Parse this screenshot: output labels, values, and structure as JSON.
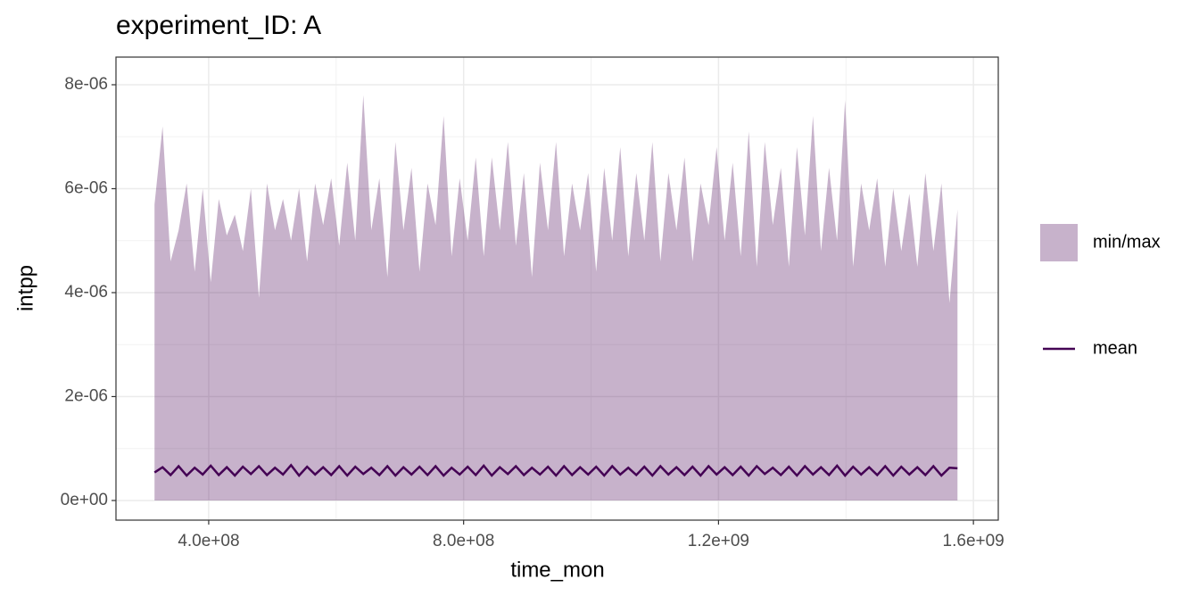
{
  "chart_data": {
    "type": "ribbon_line",
    "title": "experiment_ID: A",
    "x_label": "time_mon",
    "y_label": "intpp",
    "x": [
      315000000.0,
      327600000.0,
      340200000.0,
      352800000.0,
      365400000.0,
      378000000.0,
      390600000.0,
      403200000.0,
      415800000.0,
      428400000.0,
      441000000.0,
      453600000.0,
      466200000.0,
      478800000.0,
      491400000.0,
      504000000.0,
      516600000.0,
      529200000.0,
      541800000.0,
      554400000.0,
      567000000.0,
      579600000.0,
      592200000.0,
      604800000.0,
      617400000.0,
      630000000.0,
      642600000.0,
      655200000.0,
      667800000.0,
      680400000.0,
      693000000.0,
      705600000.0,
      718200000.0,
      730800000.0,
      743400000.0,
      756000000.0,
      768600000.0,
      781200000.0,
      793800000.0,
      806400000.0,
      819000000.0,
      831600000.0,
      844200000.0,
      856800000.0,
      869400000.0,
      882000000.0,
      894600000.0,
      907200000.0,
      919800000.0,
      932400000.0,
      945000000.0,
      957600000.0,
      970200000.0,
      982800000.0,
      995400000.0,
      1008000000.0,
      1020600000.0,
      1033200000.0,
      1045800000.0,
      1058400000.0,
      1071000000.0,
      1083600000.0,
      1096200000.0,
      1108800000.0,
      1121400000.0,
      1134000000.0,
      1146600000.0,
      1159200000.0,
      1171800000.0,
      1184400000.0,
      1197000000.0,
      1209600000.0,
      1222200000.0,
      1234800000.0,
      1247400000.0,
      1260000000.0,
      1272600000.0,
      1285200000.0,
      1297800000.0,
      1310400000.0,
      1323000000.0,
      1335600000.0,
      1348200000.0,
      1360800000.0,
      1373400000.0,
      1386000000.0,
      1398600000.0,
      1411200000.0,
      1423800000.0,
      1436400000.0,
      1449000000.0,
      1461600000.0,
      1474200000.0,
      1486800000.0,
      1499400000.0,
      1512000000.0,
      1524600000.0,
      1537200000.0,
      1549800000.0,
      1562400000.0,
      1575000000.0
    ],
    "series": [
      {
        "name": "min/max",
        "color": "#440154",
        "alpha": 0.3,
        "lower": [
          0,
          0,
          0,
          0,
          0,
          0,
          0,
          0,
          0,
          0,
          0,
          0,
          0,
          0,
          0,
          0,
          0,
          0,
          0,
          0,
          0,
          0,
          0,
          0,
          0,
          0,
          0,
          0,
          0,
          0,
          0,
          0,
          0,
          0,
          0,
          0,
          0,
          0,
          0,
          0,
          0,
          0,
          0,
          0,
          0,
          0,
          0,
          0,
          0,
          0,
          0,
          0,
          0,
          0,
          0,
          0,
          0,
          0,
          0,
          0,
          0,
          0,
          0,
          0,
          0,
          0,
          0,
          0,
          0,
          0,
          0,
          0,
          0,
          0,
          0,
          0,
          0,
          0,
          0,
          0,
          0,
          0,
          0,
          0,
          0,
          0,
          0,
          0,
          0,
          0,
          0,
          0,
          0,
          0,
          0,
          0,
          0,
          0,
          0,
          0,
          0
        ],
        "upper": [
          5.7e-06,
          7.2e-06,
          4.6e-06,
          5.2e-06,
          6.1e-06,
          4.4e-06,
          6e-06,
          4.2e-06,
          5.8e-06,
          5.1e-06,
          5.5e-06,
          4.8e-06,
          6e-06,
          3.9e-06,
          6.1e-06,
          5.2e-06,
          5.8e-06,
          5e-06,
          6e-06,
          4.6e-06,
          6.1e-06,
          5.3e-06,
          6.2e-06,
          4.9e-06,
          6.5e-06,
          5e-06,
          7.8e-06,
          5.2e-06,
          6.2e-06,
          4.3e-06,
          6.9e-06,
          5.2e-06,
          6.4e-06,
          4.4e-06,
          6.1e-06,
          5.3e-06,
          7.4e-06,
          4.7e-06,
          6.2e-06,
          5e-06,
          6.6e-06,
          4.7e-06,
          6.6e-06,
          5.2e-06,
          6.9e-06,
          4.9e-06,
          6.3e-06,
          4.3e-06,
          6.5e-06,
          5.2e-06,
          6.9e-06,
          4.7e-06,
          6.1e-06,
          5.2e-06,
          6.3e-06,
          4.4e-06,
          6.4e-06,
          5e-06,
          6.8e-06,
          4.7e-06,
          6.3e-06,
          5e-06,
          6.9e-06,
          4.6e-06,
          6.3e-06,
          5.2e-06,
          6.6e-06,
          4.6e-06,
          6.1e-06,
          5.3e-06,
          6.8e-06,
          5e-06,
          6.5e-06,
          4.7e-06,
          7.1e-06,
          4.5e-06,
          6.9e-06,
          5.3e-06,
          6.4e-06,
          4.5e-06,
          6.8e-06,
          5.1e-06,
          7.4e-06,
          4.8e-06,
          6.4e-06,
          5e-06,
          7.7e-06,
          4.5e-06,
          6.1e-06,
          5.2e-06,
          6.2e-06,
          4.5e-06,
          6e-06,
          4.8e-06,
          5.9e-06,
          4.5e-06,
          6.3e-06,
          4.8e-06,
          6.1e-06,
          3.8e-06,
          5.6e-06
        ]
      },
      {
        "name": "mean",
        "color": "#440154",
        "values": [
          5.4e-07,
          6.4e-07,
          4.9e-07,
          6.6e-07,
          4.8e-07,
          6.3e-07,
          5e-07,
          6.7e-07,
          4.9e-07,
          6.4e-07,
          4.8e-07,
          6.5e-07,
          5.1e-07,
          6.6e-07,
          4.9e-07,
          6.3e-07,
          5e-07,
          6.8e-07,
          4.8e-07,
          6.5e-07,
          5e-07,
          6.4e-07,
          4.9e-07,
          6.6e-07,
          4.8e-07,
          6.5e-07,
          5.1e-07,
          6.3e-07,
          4.9e-07,
          6.6e-07,
          4.8e-07,
          6.4e-07,
          5e-07,
          6.5e-07,
          4.9e-07,
          6.6e-07,
          4.8e-07,
          6.3e-07,
          5e-07,
          6.5e-07,
          4.9e-07,
          6.7e-07,
          4.8e-07,
          6.4e-07,
          5.1e-07,
          6.6e-07,
          4.9e-07,
          6.3e-07,
          5e-07,
          6.5e-07,
          4.8e-07,
          6.6e-07,
          4.9e-07,
          6.4e-07,
          5e-07,
          6.5e-07,
          4.8e-07,
          6.6e-07,
          5e-07,
          6.3e-07,
          4.9e-07,
          6.5e-07,
          4.8e-07,
          6.6e-07,
          5e-07,
          6.4e-07,
          4.9e-07,
          6.5e-07,
          4.8e-07,
          6.6e-07,
          5e-07,
          6.4e-07,
          4.9e-07,
          6.5e-07,
          4.8e-07,
          6.6e-07,
          5.1e-07,
          6.3e-07,
          4.9e-07,
          6.5e-07,
          4.8e-07,
          6.6e-07,
          5e-07,
          6.4e-07,
          4.9e-07,
          6.7e-07,
          4.8e-07,
          6.5e-07,
          5e-07,
          6.4e-07,
          4.9e-07,
          6.6e-07,
          4.8e-07,
          6.5e-07,
          5e-07,
          6.4e-07,
          4.9e-07,
          6.6e-07,
          4.8e-07,
          6.3e-07,
          6.2e-07
        ]
      }
    ],
    "xlim": [
      254500000.0,
      1639000000.0
    ],
    "ylim": [
      -3.78e-07,
      8.532e-06
    ],
    "xticks": [
      {
        "value": 400000000.0,
        "label": "4.0e+08"
      },
      {
        "value": 800000000.0,
        "label": "8.0e+08"
      },
      {
        "value": 1200000000.0,
        "label": "1.2e+09"
      },
      {
        "value": 1600000000.0,
        "label": "1.6e+09"
      }
    ],
    "yticks": [
      {
        "value": 0,
        "label": "0e+00"
      },
      {
        "value": 2e-06,
        "label": "2e-06"
      },
      {
        "value": 4e-06,
        "label": "4e-06"
      },
      {
        "value": 6e-06,
        "label": "6e-06"
      },
      {
        "value": 8e-06,
        "label": "8e-06"
      }
    ],
    "grid": true,
    "minor_grid": true,
    "legend": "right"
  }
}
